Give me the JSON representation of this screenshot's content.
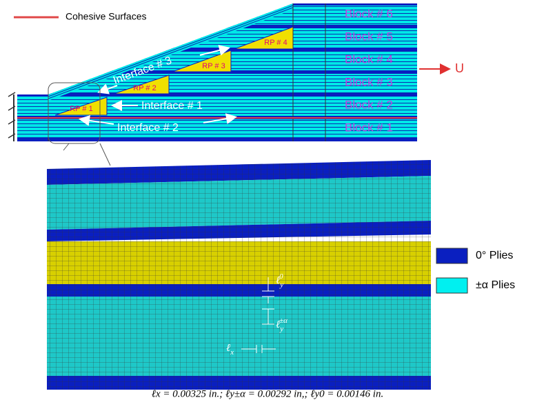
{
  "legend": {
    "cohesive": "Cohesive Surfaces"
  },
  "blocks": [
    "Block # 6",
    "Block # 5",
    "Block # 4",
    "Block # 3",
    "Block # 2",
    "Block # 1"
  ],
  "load": "U",
  "reference_points": [
    "RP # 1",
    "RP # 2",
    "RP # 3",
    "RP # 4"
  ],
  "interfaces": [
    "Interface # 1",
    "Interface # 2",
    "Interface # 3"
  ],
  "ply_legend": [
    "0° Plies",
    "±α Plies"
  ],
  "mesh_labels": {
    "ly0": {
      "symbol": "ℓ",
      "sub": "y",
      "sup": "0"
    },
    "lya": {
      "symbol": "ℓ",
      "sub": "y",
      "sup": "±α"
    },
    "lx": {
      "symbol": "ℓ",
      "sub": "x"
    }
  },
  "caption": "ℓx = 0.00325 in.; ℓy±α = 0.00292 in,; ℓy0 = 0.00146 in."
}
